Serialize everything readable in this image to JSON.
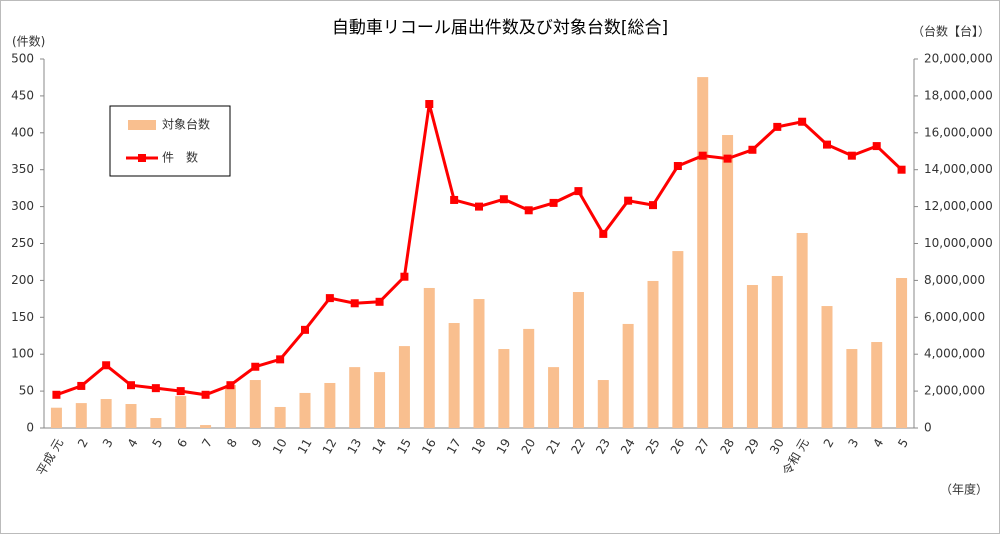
{
  "chart_data": {
    "type": "bar_line",
    "title": "自動車リコール届出件数及び対象台数[総合]",
    "y_label": "(件数)",
    "y2_label": "（台数【台】）",
    "x_label": "（年度）",
    "categories": [
      "平成 元",
      "2",
      "3",
      "4",
      "5",
      "6",
      "7",
      "8",
      "9",
      "10",
      "11",
      "12",
      "13",
      "14",
      "15",
      "16",
      "17",
      "18",
      "19",
      "20",
      "21",
      "22",
      "23",
      "24",
      "25",
      "26",
      "27",
      "28",
      "29",
      "30",
      "令和 元",
      "2",
      "3",
      "4",
      "5"
    ],
    "series": [
      {
        "name": "対象台数",
        "kind": "bar",
        "axis": "y2",
        "color": "#f9bf8f",
        "values": [
          1100000,
          1350000,
          1570000,
          1300000,
          540000,
          1730000,
          160000,
          2330000,
          2600000,
          1140000,
          1900000,
          2440000,
          3300000,
          3030000,
          4440000,
          7590000,
          5690000,
          6990000,
          4280000,
          5370000,
          3300000,
          7370000,
          2600000,
          5640000,
          7970000,
          9590000,
          19020000,
          15880000,
          7750000,
          8240000,
          10570000,
          6610000,
          4280000,
          4660000,
          8130000
        ]
      },
      {
        "name": "件　数",
        "kind": "line",
        "axis": "y",
        "color": "#ff0000",
        "values": [
          45,
          57,
          85,
          58,
          54,
          50,
          45,
          58,
          83,
          93,
          133,
          176,
          169,
          171,
          205,
          439,
          309,
          300,
          310,
          295,
          305,
          321,
          263,
          308,
          302,
          355,
          369,
          365,
          377,
          408,
          415,
          384,
          369,
          382,
          350
        ]
      }
    ],
    "ylim": [
      0,
      500
    ],
    "yticks": [
      0,
      50,
      100,
      150,
      200,
      250,
      300,
      350,
      400,
      450,
      500
    ],
    "y2lim": [
      0,
      20000000
    ],
    "y2ticks": [
      0,
      {
        "value": 2000000,
        "label": "2,000,000"
      },
      {
        "value": 4000000,
        "label": "4,000,000"
      },
      {
        "value": 6000000,
        "label": "6,000,000"
      },
      {
        "value": 8000000,
        "label": "8,000,000"
      },
      {
        "value": 10000000,
        "label": "10,000,000"
      },
      {
        "value": 12000000,
        "label": "12,000,000"
      },
      {
        "value": 14000000,
        "label": "14,000,000"
      },
      {
        "value": 16000000,
        "label": "16,000,000"
      },
      {
        "value": 18000000,
        "label": "18,000,000"
      },
      {
        "value": 20000000,
        "label": "20,000,000"
      }
    ],
    "grid": false
  }
}
